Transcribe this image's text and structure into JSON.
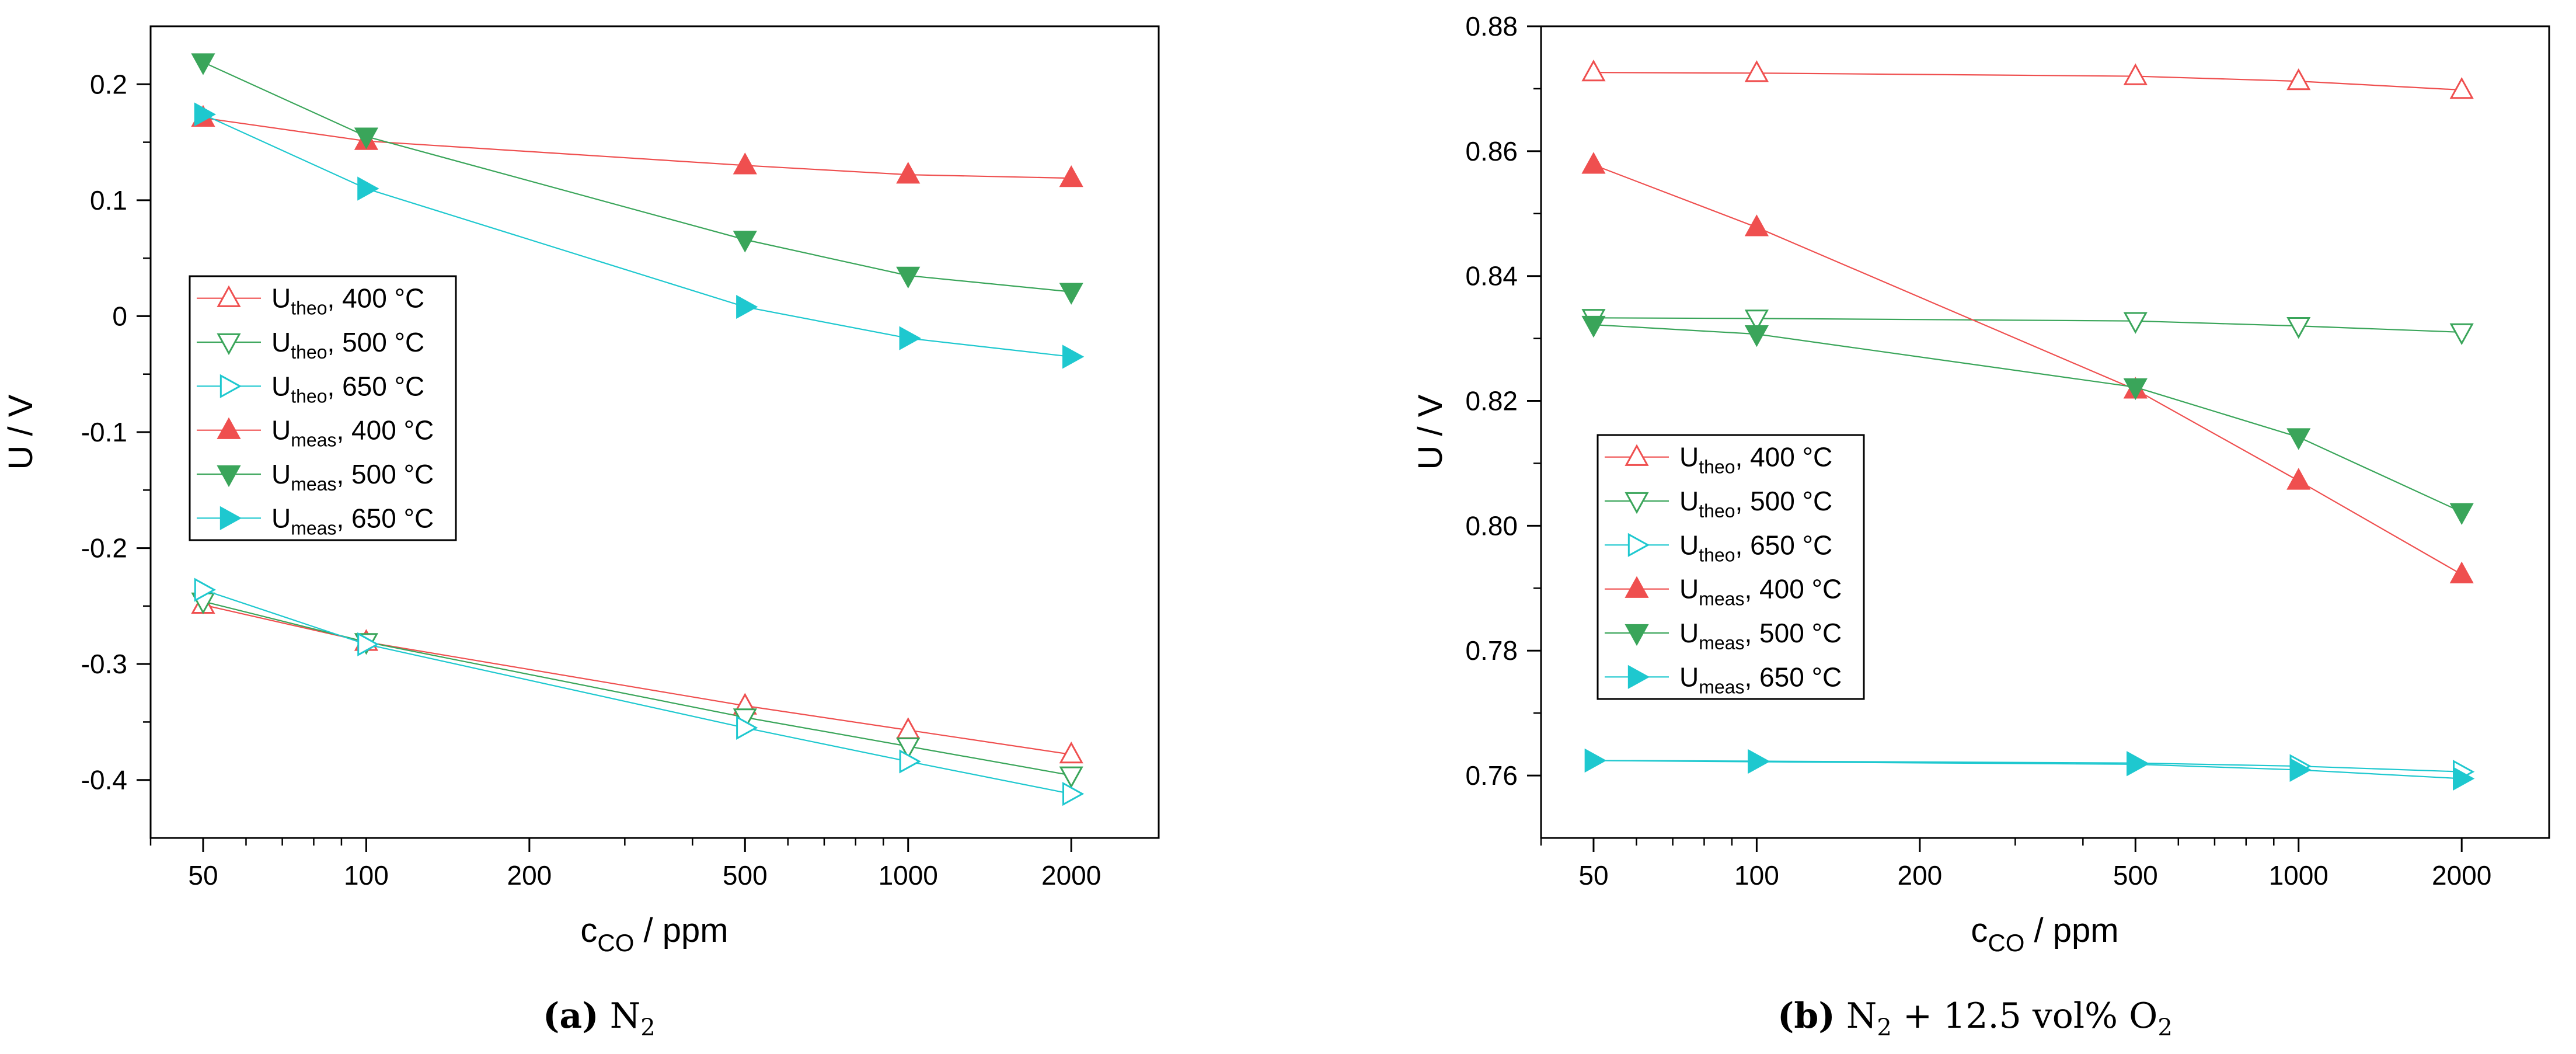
{
  "chart_data": [
    {
      "type": "line",
      "panel": "a",
      "caption_label": "(a)",
      "caption_gas": "N",
      "caption_gas_sub": "2",
      "xlabel_main": "c",
      "xlabel_sub": "CO",
      "xlabel_unit": " / ppm",
      "ylabel": "U / V",
      "xscale": "log",
      "xlim": [
        40,
        2900
      ],
      "ylim": [
        -0.45,
        0.25
      ],
      "xticks": [
        50,
        100,
        200,
        500,
        1000,
        2000
      ],
      "xtick_labels": [
        "50",
        "100",
        "200",
        "500",
        "1000",
        "2000"
      ],
      "yticks": [
        -0.4,
        -0.3,
        -0.2,
        -0.1,
        0,
        0.1,
        0.2
      ],
      "ytick_labels": [
        "-0.4",
        "-0.3",
        "-0.2",
        "-0.1",
        "0",
        "0.1",
        "0.2"
      ],
      "x": [
        50,
        100,
        500,
        1000,
        2000
      ],
      "legend_position": "center-left",
      "series": [
        {
          "name": "U",
          "sub": "theo",
          "suffix": ", 400 °C",
          "color": "#ef4f4f",
          "marker": "triangle-up",
          "filled": false,
          "values": [
            -0.249,
            -0.281,
            -0.336,
            -0.357,
            -0.378
          ]
        },
        {
          "name": "U",
          "sub": "theo",
          "suffix": ", 500 °C",
          "color": "#3aa55a",
          "marker": "triangle-down",
          "filled": false,
          "values": [
            -0.246,
            -0.281,
            -0.346,
            -0.371,
            -0.396
          ]
        },
        {
          "name": "U",
          "sub": "theo",
          "suffix": ", 650 °C",
          "color": "#1ec8cf",
          "marker": "triangle-right",
          "filled": false,
          "values": [
            -0.236,
            -0.283,
            -0.355,
            -0.384,
            -0.412
          ]
        },
        {
          "name": "U",
          "sub": "meas",
          "suffix": ", 400 °C",
          "color": "#ef4f4f",
          "marker": "triangle-up",
          "filled": true,
          "values": [
            0.171,
            0.151,
            0.13,
            0.122,
            0.119
          ]
        },
        {
          "name": "U",
          "sub": "meas",
          "suffix": ", 500 °C",
          "color": "#3aa55a",
          "marker": "triangle-down",
          "filled": true,
          "values": [
            0.219,
            0.155,
            0.066,
            0.035,
            0.021
          ]
        },
        {
          "name": "U",
          "sub": "meas",
          "suffix": ", 650 °C",
          "color": "#1ec8cf",
          "marker": "triangle-right",
          "filled": true,
          "values": [
            0.174,
            0.11,
            0.008,
            -0.019,
            -0.035
          ]
        }
      ]
    },
    {
      "type": "line",
      "panel": "b",
      "caption_label": "(b)",
      "caption_gas": "N",
      "caption_gas_sub": "2",
      "caption_rest": " + 12.5 vol% O",
      "caption_rest_sub": "2",
      "xlabel_main": "c",
      "xlabel_sub": "CO",
      "xlabel_unit": " / ppm",
      "ylabel": "U / V",
      "xscale": "log",
      "xlim": [
        40,
        2900
      ],
      "ylim": [
        0.75,
        0.88
      ],
      "xticks": [
        50,
        100,
        200,
        500,
        1000,
        2000
      ],
      "xtick_labels": [
        "50",
        "100",
        "200",
        "500",
        "1000",
        "2000"
      ],
      "yticks": [
        0.76,
        0.78,
        0.8,
        0.82,
        0.84,
        0.86,
        0.88
      ],
      "ytick_labels": [
        "0.76",
        "0.78",
        "0.80",
        "0.82",
        "0.84",
        "0.86",
        "0.88"
      ],
      "x": [
        50,
        100,
        500,
        1000,
        2000
      ],
      "legend_position": "lower-left",
      "series": [
        {
          "name": "U",
          "sub": "theo",
          "suffix": ", 400 °C",
          "color": "#ef4f4f",
          "marker": "triangle-up",
          "filled": false,
          "values": [
            0.8726,
            0.8725,
            0.872,
            0.8712,
            0.8698
          ]
        },
        {
          "name": "U",
          "sub": "theo",
          "suffix": ", 500 °C",
          "color": "#3aa55a",
          "marker": "triangle-down",
          "filled": false,
          "values": [
            0.8333,
            0.8332,
            0.8328,
            0.832,
            0.831
          ]
        },
        {
          "name": "U",
          "sub": "theo",
          "suffix": ", 650 °C",
          "color": "#1ec8cf",
          "marker": "triangle-right",
          "filled": false,
          "values": [
            0.7624,
            0.7623,
            0.762,
            0.7615,
            0.7606
          ]
        },
        {
          "name": "U",
          "sub": "meas",
          "suffix": ", 400 °C",
          "color": "#ef4f4f",
          "marker": "triangle-up",
          "filled": true,
          "values": [
            0.8578,
            0.8478,
            0.8218,
            0.8072,
            0.7922
          ]
        },
        {
          "name": "U",
          "sub": "meas",
          "suffix": ", 500 °C",
          "color": "#3aa55a",
          "marker": "triangle-down",
          "filled": true,
          "values": [
            0.8322,
            0.8307,
            0.8222,
            0.8142,
            0.8022
          ]
        },
        {
          "name": "U",
          "sub": "meas",
          "suffix": ", 650 °C",
          "color": "#1ec8cf",
          "marker": "triangle-right",
          "filled": true,
          "values": [
            0.7624,
            0.7622,
            0.7618,
            0.7609,
            0.7595
          ]
        }
      ]
    }
  ]
}
